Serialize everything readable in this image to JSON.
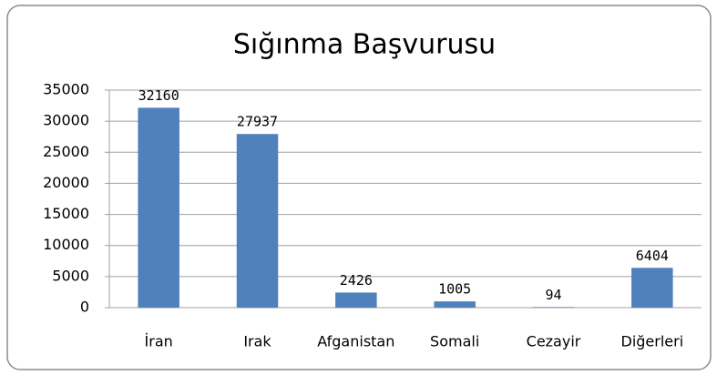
{
  "chart_data": {
    "type": "bar",
    "title": "Sığınma Başvurusu",
    "categories": [
      "İran",
      "Irak",
      "Afganistan",
      "Somali",
      "Cezayir",
      "Diğerleri"
    ],
    "values": [
      32160,
      27937,
      2426,
      1005,
      94,
      6404
    ],
    "color": "#4f81bd",
    "ylim": [
      0,
      35000
    ],
    "yticks": [
      0,
      5000,
      10000,
      15000,
      20000,
      25000,
      30000,
      35000
    ],
    "grid": true
  }
}
